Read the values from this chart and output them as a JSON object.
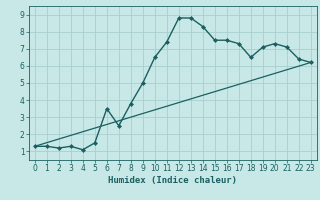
{
  "title": "",
  "xlabel": "Humidex (Indice chaleur)",
  "ylabel": "",
  "background_color": "#c8e8e8",
  "grid_color": "#a8cece",
  "line_color": "#1a6060",
  "xlim": [
    -0.5,
    23.5
  ],
  "ylim": [
    0.5,
    9.5
  ],
  "xticks": [
    0,
    1,
    2,
    3,
    4,
    5,
    6,
    7,
    8,
    9,
    10,
    11,
    12,
    13,
    14,
    15,
    16,
    17,
    18,
    19,
    20,
    21,
    22,
    23
  ],
  "yticks": [
    1,
    2,
    3,
    4,
    5,
    6,
    7,
    8,
    9
  ],
  "curve1_x": [
    0,
    1,
    2,
    3,
    4,
    5,
    6,
    7,
    8,
    9,
    10,
    11,
    12,
    13,
    14,
    15,
    16,
    17,
    18,
    19,
    20,
    21,
    22,
    23
  ],
  "curve1_y": [
    1.3,
    1.3,
    1.2,
    1.3,
    1.1,
    1.5,
    3.5,
    2.5,
    3.8,
    5.0,
    6.5,
    7.4,
    8.8,
    8.8,
    8.3,
    7.5,
    7.5,
    7.3,
    6.5,
    7.1,
    7.3,
    7.1,
    6.4,
    6.2
  ],
  "curve2_x": [
    0,
    23
  ],
  "curve2_y": [
    1.3,
    6.2
  ]
}
